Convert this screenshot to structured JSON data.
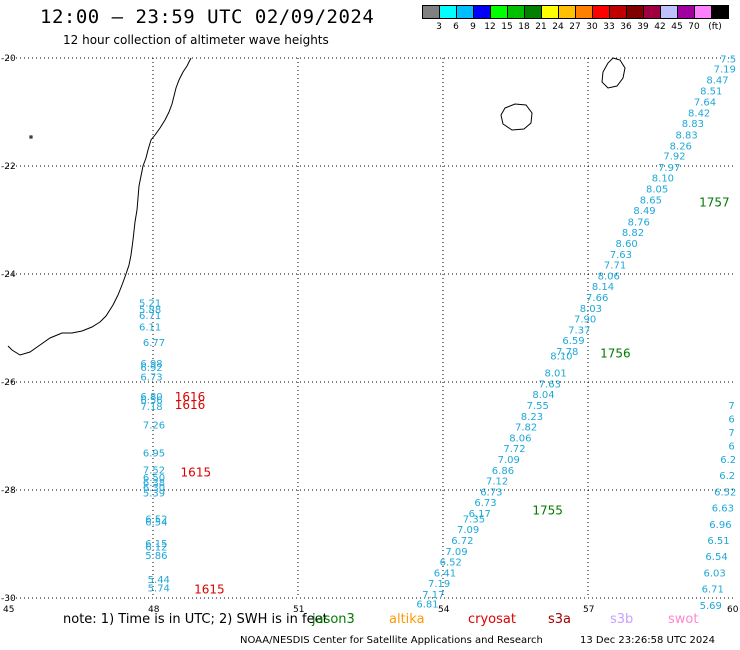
{
  "header": {
    "title": "12:00 – 23:59 UTC 02/09/2024",
    "subtitle": "12 hour collection of altimeter wave heights"
  },
  "legend": {
    "colors": [
      "#808080",
      "#00ffff",
      "#00bfff",
      "#0000ff",
      "#00ff00",
      "#00c000",
      "#008000",
      "#ffff00",
      "#ffc000",
      "#ff8000",
      "#ff0000",
      "#c00000",
      "#800000",
      "#a00040",
      "#c0c0ff",
      "#a000a0",
      "#ff80ff",
      "#000000"
    ],
    "labels": [
      "3",
      "6",
      "9",
      "12",
      "15",
      "18",
      "21",
      "24",
      "27",
      "30",
      "33",
      "36",
      "39",
      "42",
      "45",
      "70"
    ],
    "unit": "(ft)"
  },
  "map": {
    "lon_ticks": [
      "45",
      "48",
      "51",
      "54",
      "57",
      "60"
    ],
    "lat_ticks": [
      "-20",
      "-22",
      "-24",
      "-26",
      "-28",
      "-30"
    ],
    "wave_color": "#1ea8d8",
    "time_color_green": "#007a00",
    "time_color_red": "#dd0000"
  },
  "wave_heights": {
    "track_left": [
      {
        "v": "5.21",
        "lon": 47.94,
        "lat": -24.6
      },
      {
        "v": "5.88",
        "lon": 47.94,
        "lat": -24.72
      },
      {
        "v": "6.71",
        "lon": 47.94,
        "lat": -24.83
      },
      {
        "v": "6.11",
        "lon": 47.94,
        "lat": -25.05
      },
      {
        "v": "6.77",
        "lon": 48.02,
        "lat": -25.33
      },
      {
        "v": "6.98",
        "lon": 47.97,
        "lat": -25.72
      },
      {
        "v": "6.92",
        "lon": 47.97,
        "lat": -25.8
      },
      {
        "v": "6.73",
        "lon": 47.97,
        "lat": -25.97
      },
      {
        "v": "6.80",
        "lon": 47.97,
        "lat": -26.33
      },
      {
        "v": "6.56",
        "lon": 47.97,
        "lat": -26.4
      },
      {
        "v": "7.18",
        "lon": 47.97,
        "lat": -26.52
      },
      {
        "v": "7.26",
        "lon": 48.02,
        "lat": -26.86
      },
      {
        "v": "6.95",
        "lon": 48.02,
        "lat": -27.38
      },
      {
        "v": "7.52",
        "lon": 48.02,
        "lat": -27.69
      },
      {
        "v": "6.50",
        "lon": 48.02,
        "lat": -27.83
      },
      {
        "v": "6.38",
        "lon": 48.02,
        "lat": -27.93
      },
      {
        "v": "6.30",
        "lon": 48.02,
        "lat": -28.02
      },
      {
        "v": "5.39",
        "lon": 48.02,
        "lat": -28.12
      },
      {
        "v": "6.52",
        "lon": 48.07,
        "lat": -28.6
      },
      {
        "v": "6.54",
        "lon": 48.07,
        "lat": -28.66
      },
      {
        "v": "6.15",
        "lon": 48.07,
        "lat": -29.06
      },
      {
        "v": "6.12",
        "lon": 48.07,
        "lat": -29.12
      },
      {
        "v": "5.86",
        "lon": 48.07,
        "lat": -29.28
      },
      {
        "v": "5.44",
        "lon": 48.12,
        "lat": -29.72
      },
      {
        "v": "5.74",
        "lon": 48.12,
        "lat": -29.88
      }
    ],
    "track_middle": [
      {
        "v": "7.5",
        "lon": 59.9,
        "lat": -20.08
      },
      {
        "v": "7.19",
        "lon": 59.83,
        "lat": -20.27
      },
      {
        "v": "8.47",
        "lon": 59.68,
        "lat": -20.47
      },
      {
        "v": "8.51",
        "lon": 59.55,
        "lat": -20.68
      },
      {
        "v": "7.64",
        "lon": 59.42,
        "lat": -20.88
      },
      {
        "v": "8.42",
        "lon": 59.3,
        "lat": -21.08
      },
      {
        "v": "8.83",
        "lon": 59.17,
        "lat": -21.28
      },
      {
        "v": "8.83",
        "lon": 59.04,
        "lat": -21.49
      },
      {
        "v": "8.26",
        "lon": 58.92,
        "lat": -21.69
      },
      {
        "v": "7.92",
        "lon": 58.79,
        "lat": -21.88
      },
      {
        "v": "7.97",
        "lon": 58.68,
        "lat": -22.09
      },
      {
        "v": "8.10",
        "lon": 58.55,
        "lat": -22.29
      },
      {
        "v": "8.05",
        "lon": 58.43,
        "lat": -22.49
      },
      {
        "v": "8.65",
        "lon": 58.3,
        "lat": -22.69
      },
      {
        "v": "8.49",
        "lon": 58.17,
        "lat": -22.89
      },
      {
        "v": "8.76",
        "lon": 58.05,
        "lat": -23.1
      },
      {
        "v": "8.82",
        "lon": 57.93,
        "lat": -23.3
      },
      {
        "v": "8.60",
        "lon": 57.8,
        "lat": -23.5
      },
      {
        "v": "7.63",
        "lon": 57.68,
        "lat": -23.7
      },
      {
        "v": "7.71",
        "lon": 57.56,
        "lat": -23.9
      },
      {
        "v": "8.06",
        "lon": 57.43,
        "lat": -24.1
      },
      {
        "v": "8.14",
        "lon": 57.31,
        "lat": -24.3
      },
      {
        "v": "7.66",
        "lon": 57.19,
        "lat": -24.5
      },
      {
        "v": "8.03",
        "lon": 57.06,
        "lat": -24.7
      },
      {
        "v": "7.90",
        "lon": 56.94,
        "lat": -24.9
      },
      {
        "v": "7.37",
        "lon": 56.82,
        "lat": -25.1
      },
      {
        "v": "6.59",
        "lon": 56.7,
        "lat": -25.3
      },
      {
        "v": "7.78",
        "lon": 56.57,
        "lat": -25.5
      },
      {
        "v": "8.10",
        "lon": 56.45,
        "lat": -25.58
      },
      {
        "v": "8.01",
        "lon": 56.33,
        "lat": -25.9
      },
      {
        "v": "7.63",
        "lon": 56.21,
        "lat": -26.1
      },
      {
        "v": "8.04",
        "lon": 56.08,
        "lat": -26.3
      },
      {
        "v": "7.55",
        "lon": 55.96,
        "lat": -26.5
      },
      {
        "v": "8.23",
        "lon": 55.84,
        "lat": -26.7
      },
      {
        "v": "7.82",
        "lon": 55.72,
        "lat": -26.9
      },
      {
        "v": "8.06",
        "lon": 55.6,
        "lat": -27.1
      },
      {
        "v": "7.72",
        "lon": 55.48,
        "lat": -27.3
      },
      {
        "v": "7.09",
        "lon": 55.36,
        "lat": -27.5
      },
      {
        "v": "6.86",
        "lon": 55.24,
        "lat": -27.7
      },
      {
        "v": "7.12",
        "lon": 55.12,
        "lat": -27.9
      },
      {
        "v": "6.73",
        "lon": 55.0,
        "lat": -28.1
      },
      {
        "v": "6.73",
        "lon": 54.88,
        "lat": -28.3
      },
      {
        "v": "6.17",
        "lon": 54.76,
        "lat": -28.5
      },
      {
        "v": "7.35",
        "lon": 54.64,
        "lat": -28.6
      },
      {
        "v": "7.09",
        "lon": 54.52,
        "lat": -28.8
      },
      {
        "v": "6.72",
        "lon": 54.4,
        "lat": -29.0
      },
      {
        "v": "7.09",
        "lon": 54.28,
        "lat": -29.2
      },
      {
        "v": "6.52",
        "lon": 54.16,
        "lat": -29.4
      },
      {
        "v": "6.41",
        "lon": 54.04,
        "lat": -29.6
      },
      {
        "v": "7.19",
        "lon": 53.92,
        "lat": -29.8
      },
      {
        "v": "7.17",
        "lon": 53.8,
        "lat": -30.0
      },
      {
        "v": "6.81",
        "lon": 53.68,
        "lat": -30.18
      }
    ],
    "track_right": [
      {
        "v": "7",
        "lon": 59.97,
        "lat": -26.5
      },
      {
        "v": "6",
        "lon": 59.97,
        "lat": -26.75
      },
      {
        "v": "7",
        "lon": 59.97,
        "lat": -27.0
      },
      {
        "v": "6",
        "lon": 59.97,
        "lat": -27.25
      },
      {
        "v": "6.2",
        "lon": 59.9,
        "lat": -27.5
      },
      {
        "v": "6.2",
        "lon": 59.88,
        "lat": -27.8
      },
      {
        "v": "6.52",
        "lon": 59.84,
        "lat": -28.1
      },
      {
        "v": "6.63",
        "lon": 59.79,
        "lat": -28.4
      },
      {
        "v": "6.96",
        "lon": 59.74,
        "lat": -28.7
      },
      {
        "v": "6.51",
        "lon": 59.7,
        "lat": -29.0
      },
      {
        "v": "6.54",
        "lon": 59.66,
        "lat": -29.3
      },
      {
        "v": "6.03",
        "lon": 59.62,
        "lat": -29.6
      },
      {
        "v": "6.71",
        "lon": 59.58,
        "lat": -29.9
      },
      {
        "v": "5.69",
        "lon": 59.54,
        "lat": -30.2
      }
    ]
  },
  "time_labels": [
    {
      "t": "1616",
      "lon": 48.45,
      "lat": -26.35,
      "color": "red"
    },
    {
      "t": "1616",
      "lon": 48.45,
      "lat": -26.5,
      "color": "red"
    },
    {
      "t": "1615",
      "lon": 48.57,
      "lat": -27.75,
      "color": "red"
    },
    {
      "t": "1615",
      "lon": 48.85,
      "lat": -29.92,
      "color": "red"
    },
    {
      "t": "1757",
      "lon": 59.3,
      "lat": -22.75,
      "color": "green"
    },
    {
      "t": "1756",
      "lon": 57.25,
      "lat": -25.55,
      "color": "green"
    },
    {
      "t": "1755",
      "lon": 55.85,
      "lat": -28.45,
      "color": "green"
    }
  ],
  "footer": {
    "note": "note: 1) Time is in UTC; 2) SWH is in feet",
    "satellites": [
      {
        "name": "jason3",
        "color": "#007a00"
      },
      {
        "name": "altika",
        "color": "#ff9900"
      },
      {
        "name": "cryosat",
        "color": "#dd0000"
      },
      {
        "name": "s3a",
        "color": "#a00000"
      },
      {
        "name": "s3b",
        "color": "#c8a0ff"
      },
      {
        "name": "swot",
        "color": "#ff88cc"
      }
    ],
    "credit": "NOAA/NESDIS Center for Satellite Applications and Research",
    "generated": "13 Dec 23:26:58 UTC 2024"
  }
}
